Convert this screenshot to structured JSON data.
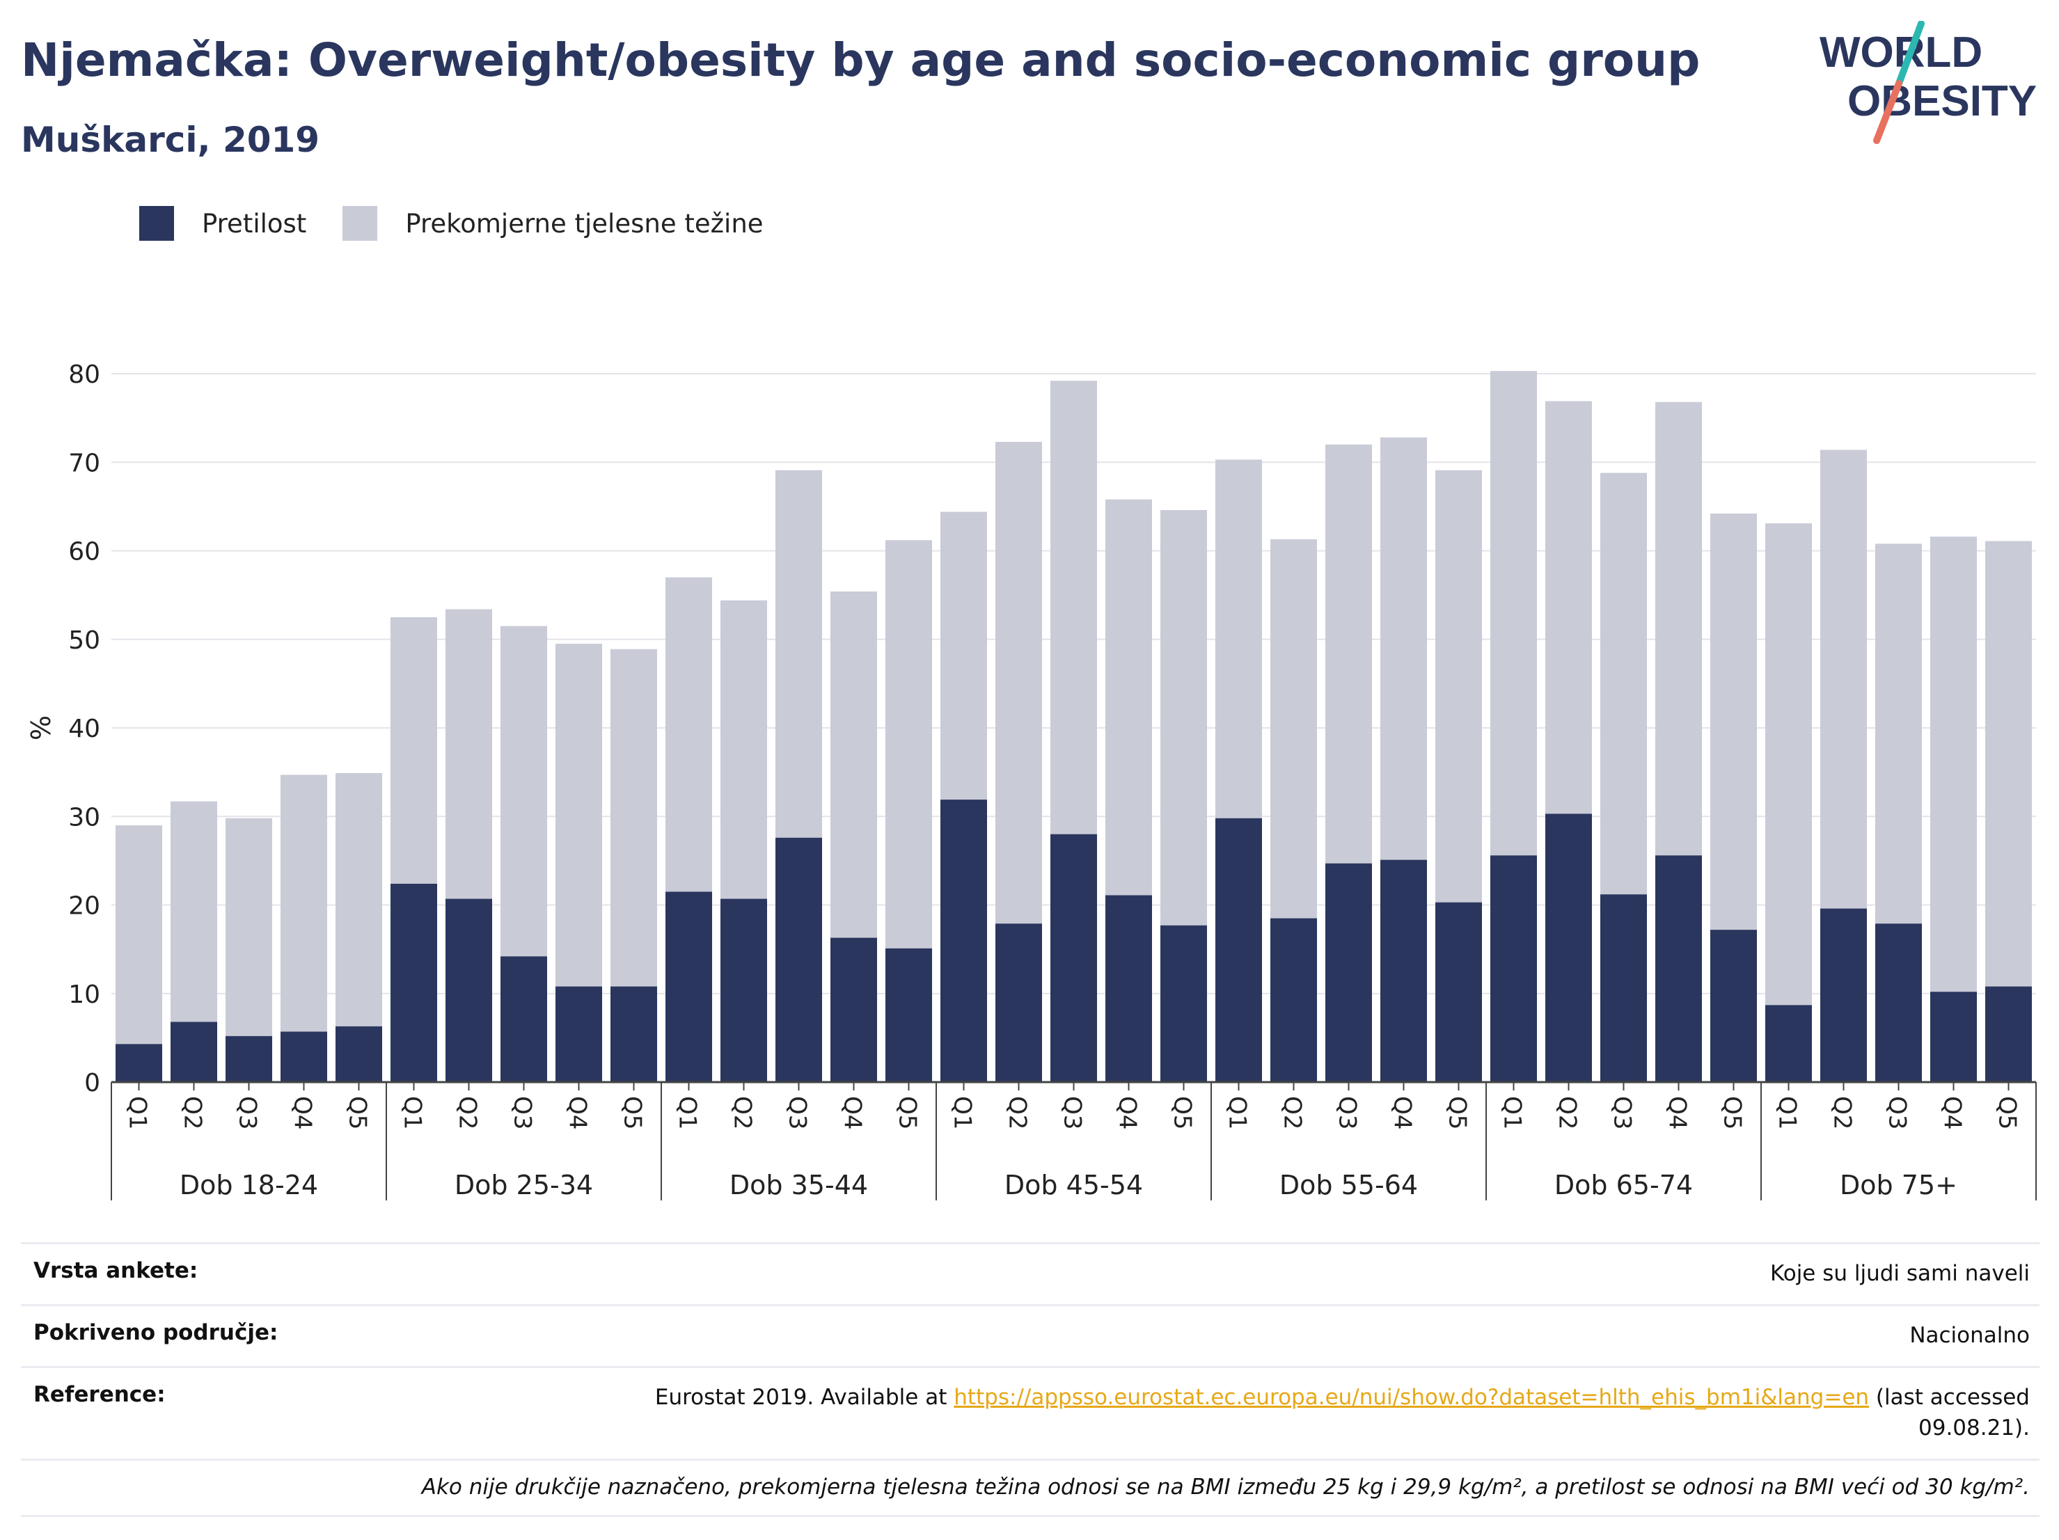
{
  "header": {
    "title": "Njemačka: Overweight/obesity by age and socio-economic group",
    "subtitle": "Muškarci, 2019"
  },
  "logo": {
    "line1": "WORLD",
    "line2": "OBESITY",
    "icon": "world-obesity-slash-logo"
  },
  "legend": [
    {
      "label": "Pretilost",
      "color": "#2a365e"
    },
    {
      "label": "Prekomjerne tjelesne težine",
      "color": "#c9cbd7"
    }
  ],
  "chart_data": {
    "type": "bar",
    "stacked": true,
    "ylabel": "%",
    "ylim": [
      0,
      80
    ],
    "yticks": [
      0,
      10,
      20,
      30,
      40,
      50,
      60,
      70,
      80
    ],
    "grid": true,
    "legend_position": "top-left",
    "categories": [
      "Q1",
      "Q2",
      "Q3",
      "Q4",
      "Q5"
    ],
    "groups": [
      "Dob 18-24",
      "Dob 25-34",
      "Dob 35-44",
      "Dob 45-54",
      "Dob 55-64",
      "Dob 65-74",
      "Dob 75+"
    ],
    "series": [
      {
        "name": "Pretilost",
        "color": "#2a365e",
        "values": [
          [
            4.3,
            6.8,
            5.2,
            5.7,
            6.3
          ],
          [
            22.4,
            20.7,
            14.2,
            10.8,
            10.8
          ],
          [
            21.5,
            20.7,
            27.6,
            16.3,
            15.1
          ],
          [
            31.9,
            17.9,
            28.0,
            21.1,
            17.7
          ],
          [
            29.8,
            18.5,
            24.7,
            25.1,
            20.3
          ],
          [
            25.6,
            30.3,
            21.2,
            25.6,
            17.2
          ],
          [
            8.7,
            19.6,
            17.9,
            10.2,
            10.8
          ]
        ]
      },
      {
        "name": "Prekomjerne tjelesne težine",
        "color": "#c9cbd7",
        "totals": [
          [
            29.0,
            31.7,
            29.8,
            34.7,
            34.9
          ],
          [
            52.5,
            53.4,
            51.5,
            49.5,
            48.9
          ],
          [
            57.0,
            54.4,
            69.1,
            55.4,
            61.2
          ],
          [
            64.4,
            72.3,
            79.2,
            65.8,
            64.6
          ],
          [
            70.3,
            61.3,
            72.0,
            72.8,
            69.1
          ],
          [
            80.3,
            76.9,
            68.8,
            76.8,
            64.2
          ],
          [
            63.1,
            71.4,
            60.8,
            61.6,
            61.1
          ]
        ]
      }
    ]
  },
  "info": {
    "survey_type_label": "Vrsta ankete:",
    "survey_type_value": "Koje su ljudi sami naveli",
    "coverage_label": "Pokriveno područje:",
    "coverage_value": "Nacionalno",
    "reference_label": "Reference:",
    "reference_prefix": "Eurostat 2019. Available at ",
    "reference_link": "https://appsso.eurostat.ec.europa.eu/nui/show.do?dataset=hlth_ehis_bm1i&lang=en",
    "reference_suffix": " (last accessed 09.08.21).",
    "note": "Ako nije drukčije naznačeno, prekomjerna tjelesna težina odnosi se na BMI između 25 kg i 29,9 kg/m², a pretilost se odnosi na BMI veći od 30 kg/m²."
  }
}
